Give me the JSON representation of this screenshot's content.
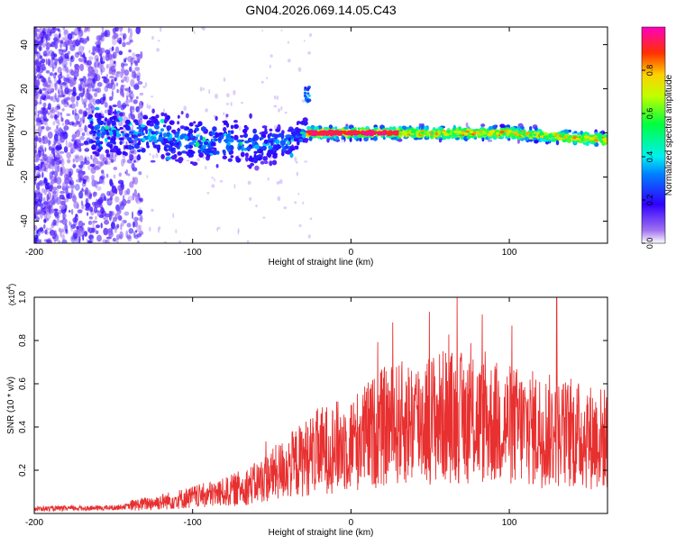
{
  "figure_title": "GN04.2026.069.14.05.C43",
  "colors": {
    "snr_line": "#e83030",
    "axis": "#000000"
  },
  "chart_data": [
    {
      "type": "heatmap",
      "name": "spectrogram",
      "title": "GN04.2026.069.14.05.C43",
      "xlabel": "Height of straight line (km)",
      "ylabel": "Frequency (Hz)",
      "xlim": [
        -200,
        162
      ],
      "ylim": [
        -50,
        48
      ],
      "xticks": [
        -200,
        -100,
        0,
        100
      ],
      "yticks": [
        -40,
        -20,
        0,
        20,
        40
      ],
      "xtick_labels": [
        "-200",
        "-100",
        "0",
        "100"
      ],
      "ytick_labels": [
        "-40",
        "-20",
        "0",
        "20",
        "40"
      ],
      "colorbar": {
        "label": "Normalized spectral amplitude",
        "range": [
          0,
          1
        ],
        "ticks": [
          0.0,
          0.2,
          0.4,
          0.6,
          0.8
        ],
        "tick_labels": [
          "0.0",
          "0.2",
          "0.4",
          "0.6",
          "0.8"
        ]
      },
      "ridge": [
        {
          "x": -165,
          "f": 0
        },
        {
          "x": -140,
          "f": -1
        },
        {
          "x": -120,
          "f": -1
        },
        {
          "x": -100,
          "f": -4
        },
        {
          "x": -80,
          "f": -4
        },
        {
          "x": -60,
          "f": -6
        },
        {
          "x": -40,
          "f": -4
        },
        {
          "x": -28,
          "f": 0
        },
        {
          "x": -20,
          "f": 0
        },
        {
          "x": 0,
          "f": 0
        },
        {
          "x": 20,
          "f": 0
        },
        {
          "x": 40,
          "f": 0
        },
        {
          "x": 60,
          "f": 0
        },
        {
          "x": 80,
          "f": 0
        },
        {
          "x": 100,
          "f": 0
        },
        {
          "x": 120,
          "f": -1
        },
        {
          "x": 140,
          "f": -2
        },
        {
          "x": 162,
          "f": -3
        }
      ]
    },
    {
      "type": "line",
      "name": "snr",
      "xlabel": "Height of straight line (km)",
      "ylabel": "SNR (10 * v/v)",
      "y_multiplier": "(x10",
      "y_multiplier_exp": "4",
      "y_multiplier_close": ")",
      "xlim": [
        -200,
        162
      ],
      "ylim": [
        0,
        1.0
      ],
      "xticks": [
        -200,
        -100,
        0,
        100
      ],
      "yticks": [
        0.2,
        0.4,
        0.6,
        0.8,
        1.0
      ],
      "xtick_labels": [
        "-200",
        "-100",
        "0",
        "100"
      ],
      "ytick_labels": [
        "0.2",
        "0.4",
        "0.6",
        "0.8",
        "1.0"
      ],
      "envelope": [
        {
          "x": -200,
          "y": 0.02
        },
        {
          "x": -150,
          "y": 0.025
        },
        {
          "x": -120,
          "y": 0.05
        },
        {
          "x": -100,
          "y": 0.07
        },
        {
          "x": -80,
          "y": 0.09
        },
        {
          "x": -60,
          "y": 0.13
        },
        {
          "x": -40,
          "y": 0.2
        },
        {
          "x": -20,
          "y": 0.27
        },
        {
          "x": 0,
          "y": 0.3
        },
        {
          "x": 20,
          "y": 0.37
        },
        {
          "x": 40,
          "y": 0.4
        },
        {
          "x": 60,
          "y": 0.42
        },
        {
          "x": 80,
          "y": 0.4
        },
        {
          "x": 100,
          "y": 0.38
        },
        {
          "x": 120,
          "y": 0.36
        },
        {
          "x": 140,
          "y": 0.34
        },
        {
          "x": 162,
          "y": 0.32
        }
      ],
      "peak": {
        "x": 130,
        "y": 1.0
      }
    }
  ]
}
